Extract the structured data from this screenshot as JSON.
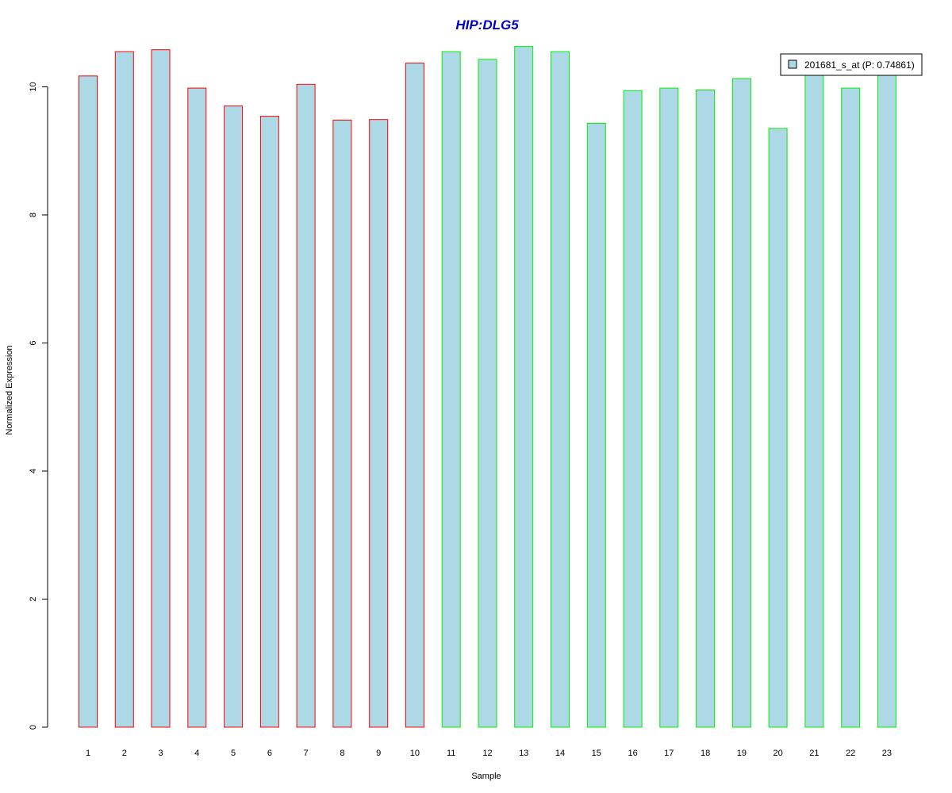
{
  "chart_data": {
    "type": "bar",
    "title": "HIP:DLG5",
    "title_color": "#0000CC",
    "xlabel": "Sample",
    "ylabel": "Normalized Expression",
    "ylim": [
      0,
      10.6
    ],
    "yticks": [
      0,
      2,
      4,
      6,
      8,
      10
    ],
    "categories": [
      "1",
      "2",
      "3",
      "4",
      "5",
      "6",
      "7",
      "8",
      "9",
      "10",
      "11",
      "12",
      "13",
      "14",
      "15",
      "16",
      "17",
      "18",
      "19",
      "20",
      "21",
      "22",
      "23"
    ],
    "series": [
      {
        "name": "201681_s_at (P: 0.74861)",
        "fill_color": "#ADD8E6",
        "values": [
          10.17,
          10.55,
          10.58,
          9.98,
          9.7,
          9.54,
          10.04,
          9.48,
          9.49,
          10.37,
          10.55,
          10.43,
          10.63,
          10.55,
          9.43,
          9.94,
          9.98,
          9.95,
          10.13,
          9.35,
          10.2,
          9.98,
          10.2
        ]
      }
    ],
    "groups": [
      {
        "samples": [
          1,
          10
        ],
        "border_color": "#FF0000"
      },
      {
        "samples": [
          11,
          23
        ],
        "border_color": "#00EE00"
      }
    ],
    "legend_position": "top-right",
    "grid": false
  }
}
